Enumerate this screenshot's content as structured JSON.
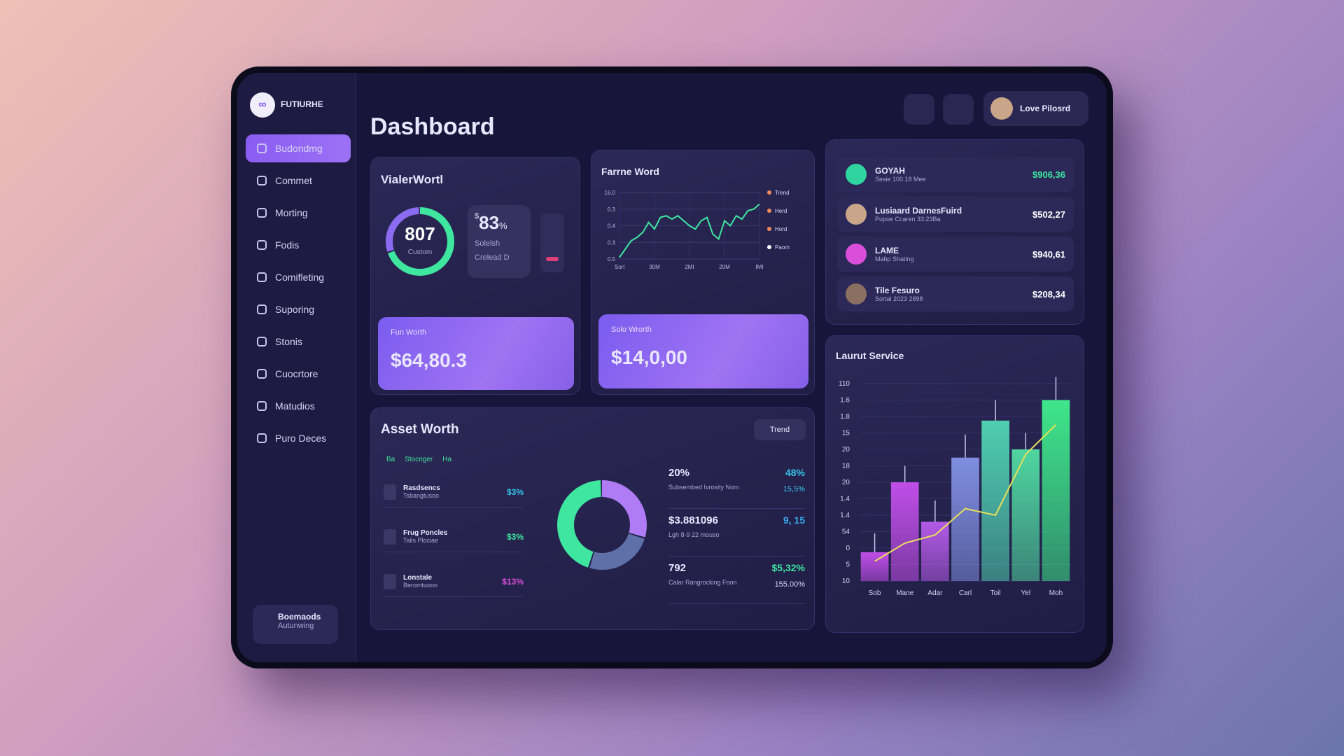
{
  "sidebar": {
    "brand": "FUTIURHE",
    "nav": [
      "Budondmg",
      "Commet",
      "Morting",
      "Fodis",
      "Comifleting",
      "Suporing",
      "Stonis",
      "Cuocrtore",
      "Matudios",
      "Puro Deces"
    ],
    "footer": {
      "title": "Boemaods",
      "subtitle": "Autunwing"
    }
  },
  "header": {
    "title": "Dashboard",
    "user": "Love Pilosrd"
  },
  "value_card": {
    "title": "VialerWortl",
    "gauge": {
      "value": "807",
      "label": "Custom",
      "segments": [
        {
          "color": "#3ee6a0",
          "value": 70
        },
        {
          "color": "#8b6cf0",
          "value": 30
        }
      ]
    },
    "stat": {
      "prefix": "$",
      "value": "83",
      "unit": "%",
      "line1": "Solelsh",
      "line2": "Crelead D"
    },
    "worth": {
      "label": "Fun Worth",
      "amount": "$64,80.3"
    }
  },
  "line_card": {
    "title": "Farrne Word",
    "chart": {
      "type": "line",
      "y_labels": [
        "16.0",
        "0.3",
        "0.4",
        "0.3",
        "0.5"
      ],
      "ylim": [
        0,
        4
      ],
      "x_labels": [
        "Sorl",
        "30M",
        "2MI",
        "20M",
        "IMI"
      ],
      "legend": [
        "Trend",
        "Herd",
        "Hord",
        "Paom"
      ],
      "color": "#3ee6a0",
      "values": [
        0.1,
        0.6,
        1.1,
        1.3,
        1.6,
        2.2,
        1.8,
        2.5,
        2.6,
        2.4,
        2.6,
        2.3,
        2.0,
        1.8,
        2.3,
        2.5,
        1.5,
        1.2,
        2.3,
        2.0,
        2.6,
        2.4,
        2.9,
        3.0,
        3.3
      ]
    },
    "worth": {
      "label": "Solo Wrorth",
      "amount": "$14,0,00"
    }
  },
  "people": [
    {
      "name": "GOYAH",
      "detail": "Sesie 100.18 Mee",
      "amount": "$906,36",
      "color": "#2fd4a0"
    },
    {
      "name": "Lusiaard DarnesFuird",
      "detail": "Pupoe Ccaren 33:23Ba",
      "amount": "$502,27",
      "color": "#c9a58a"
    },
    {
      "name": "LAME",
      "detail": "Mabp Shating",
      "amount": "$940,61",
      "color": "#d94fd9"
    },
    {
      "name": "Tile Fesuro",
      "detail": "Sortal 2023 2898",
      "amount": "$208,34",
      "color": "#8a7060"
    }
  ],
  "asset": {
    "title": "Asset Worth",
    "button": "Trend",
    "legend": [
      "Ba",
      "Stocnger",
      "Ha"
    ],
    "rows": [
      {
        "name": "Rasdsencs",
        "detail": "Tsbangtusoo",
        "value": "$3%",
        "color": "#37c4e8"
      },
      {
        "name": "Frug Poncles",
        "detail": "Tails Plociae",
        "value": "$3%",
        "color": "#3ee6a0"
      },
      {
        "name": "Lonstale",
        "detail": "Beromtuooo",
        "value": "$13%",
        "color": "#d94fd9"
      }
    ],
    "donut": {
      "type": "pie",
      "segments": [
        {
          "color": "#b07cf5",
          "value": 30
        },
        {
          "color": "#5f6fa8",
          "value": 25
        },
        {
          "color": "#3ee6a0",
          "value": 45
        }
      ]
    },
    "stats": [
      {
        "value": "20%",
        "right": "48%",
        "label": "Subsembed Ivrosity Nom",
        "right2": "15,5%"
      },
      {
        "value": "$3.881096",
        "right": "9, 15",
        "label": "Lgh 8-9 22 mouso"
      },
      {
        "value": "792",
        "right": "$5,32%",
        "label": "Calar Rangrocking Foon",
        "right2": "155.00%"
      }
    ]
  },
  "service": {
    "title": "Laurut Service",
    "chart": {
      "type": "bar",
      "y_labels": [
        "110",
        "1.6",
        "1.8",
        "15",
        "20",
        "18",
        "20",
        "1.4",
        "1.4",
        "54",
        "0",
        "5",
        "10"
      ],
      "ylim": [
        0,
        12
      ],
      "categories": [
        "Sob",
        "Mane",
        "Adar",
        "Carl",
        "Toil",
        "Yel",
        "Moh"
      ],
      "values": [
        1.75,
        6,
        3.6,
        7.5,
        9.75,
        8,
        11
      ],
      "whiskers": [
        2.9,
        7,
        4.9,
        8.9,
        11,
        9,
        12.4
      ],
      "trend": [
        1.2,
        2.3,
        2.8,
        4.4,
        4.0,
        7.7,
        9.5
      ],
      "colors": [
        "#c04ee8",
        "#c04ee8",
        "#b35ae6",
        "#7f8ee0",
        "#4fcfb0",
        "#4fd6a0",
        "#3ee68a"
      ],
      "trend_color": "#e8e05a"
    }
  }
}
